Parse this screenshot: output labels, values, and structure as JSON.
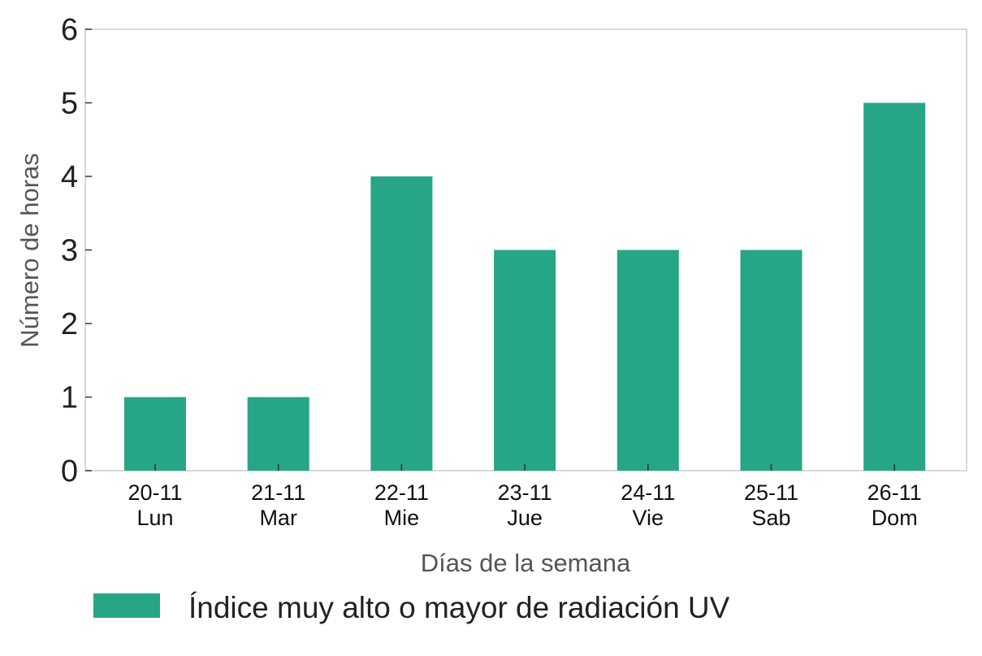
{
  "chart_data": {
    "type": "bar",
    "categories": [
      [
        "20-11",
        "Lun"
      ],
      [
        "21-11",
        "Mar"
      ],
      [
        "22-11",
        "Mie"
      ],
      [
        "23-11",
        "Jue"
      ],
      [
        "24-11",
        "Vie"
      ],
      [
        "25-11",
        "Sab"
      ],
      [
        "26-11",
        "Dom"
      ]
    ],
    "series": [
      {
        "name": "Índice muy alto o mayor de radiación UV",
        "values": [
          1,
          1,
          4,
          3,
          3,
          3,
          5
        ],
        "color": "#27A687"
      }
    ],
    "xlabel": "Días de la semana",
    "ylabel": "Número de horas",
    "ylim": [
      0,
      6
    ],
    "yticks": [
      0,
      1,
      2,
      3,
      4,
      5,
      6
    ],
    "grid": false,
    "legend_position": "bottom-left"
  }
}
